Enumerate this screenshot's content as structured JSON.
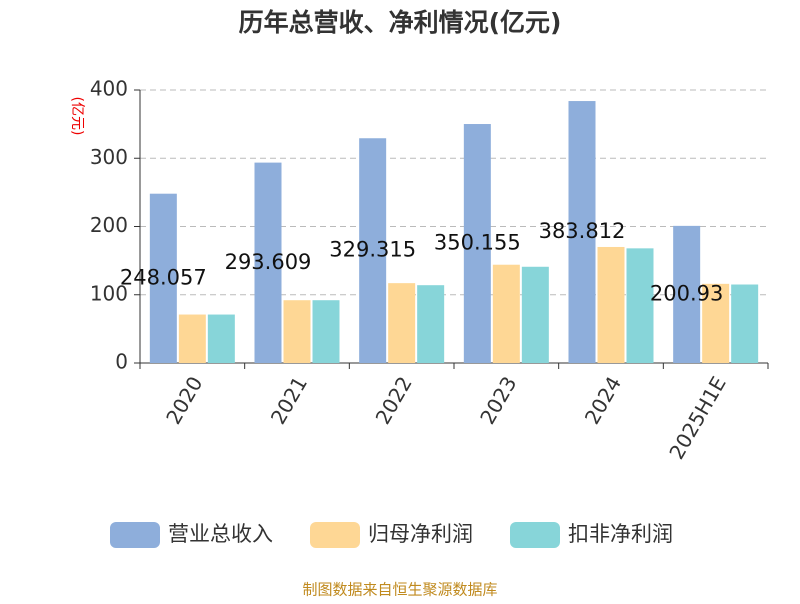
{
  "chart_data": {
    "type": "bar",
    "title": "历年总营收、净利情况(亿元)",
    "y_label": "(亿元)",
    "categories": [
      "2020",
      "2021",
      "2022",
      "2023",
      "2024",
      "2025H1E"
    ],
    "series": [
      {
        "name": "营业总收入",
        "color": "#8eaedb",
        "values": [
          248.057,
          293.609,
          329.315,
          350.155,
          383.812,
          200.93
        ],
        "show_labels": true
      },
      {
        "name": "归母净利润",
        "color": "#fed795",
        "values": [
          71,
          92,
          117,
          144,
          170,
          116
        ]
      },
      {
        "name": "扣非净利润",
        "color": "#87d5d9",
        "values": [
          71,
          92,
          114,
          141,
          168,
          115
        ]
      }
    ],
    "ylim": [
      0,
      400
    ],
    "yticks": [
      0,
      100,
      200,
      300,
      400
    ],
    "grid": true,
    "source": "制图数据来自恒生聚源数据库"
  }
}
